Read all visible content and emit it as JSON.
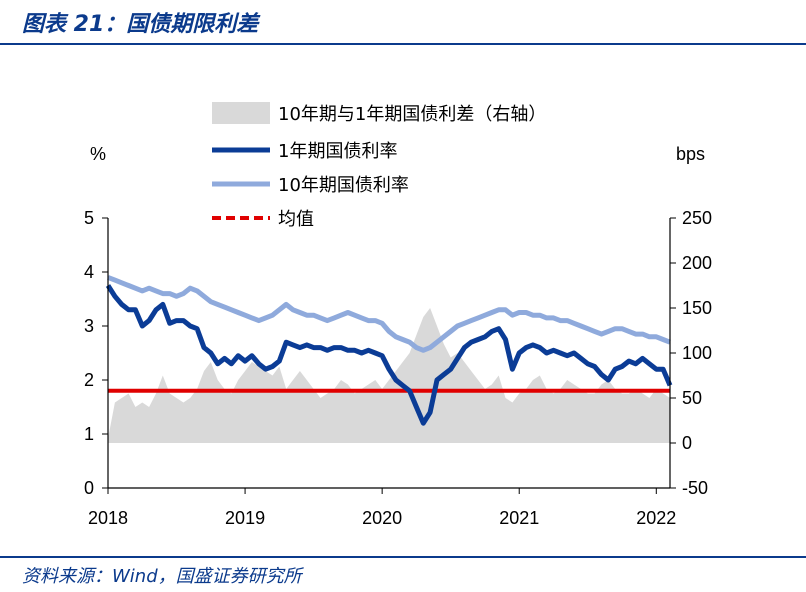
{
  "header": {
    "title": "图表 21：国债期限利差"
  },
  "footer": {
    "source": "资料来源：Wind，国盛证券研究所"
  },
  "colors": {
    "spread": "#d9d9d9",
    "y1": "#0b3c96",
    "y10": "#8faadc",
    "mean": "#e00000",
    "brand": "#0b3a8c"
  },
  "chart_data": {
    "type": "line",
    "left_unit": "%",
    "right_unit": "bps",
    "x_ticks": [
      "2018",
      "2019",
      "2020",
      "2021",
      "2022"
    ],
    "y_left_ticks": [
      "0",
      "1",
      "2",
      "3",
      "4",
      "5"
    ],
    "y_right_ticks": [
      "-50",
      "0",
      "50",
      "100",
      "150",
      "200",
      "250"
    ],
    "ylim_left": [
      0,
      5
    ],
    "ylim_right": [
      -50,
      250
    ],
    "xlim": [
      2018.0,
      2022.1
    ],
    "legend": [
      {
        "label": "10年期与1年期国债利差（右轴）",
        "key": "spread"
      },
      {
        "label": "1年期国债利率",
        "key": "y1"
      },
      {
        "label": "10年期国债利率",
        "key": "y10"
      },
      {
        "label": "均值",
        "key": "mean"
      }
    ],
    "mean_value_left": 1.8,
    "series": [
      {
        "name": "10年期与1年期国债利差（右轴）",
        "axis": "right",
        "type": "area",
        "x": [
          2018.0,
          2018.05,
          2018.1,
          2018.15,
          2018.2,
          2018.25,
          2018.3,
          2018.35,
          2018.4,
          2018.45,
          2018.5,
          2018.55,
          2018.6,
          2018.65,
          2018.7,
          2018.75,
          2018.8,
          2018.85,
          2018.9,
          2018.95,
          2019.0,
          2019.05,
          2019.1,
          2019.15,
          2019.2,
          2019.25,
          2019.3,
          2019.35,
          2019.4,
          2019.45,
          2019.5,
          2019.55,
          2019.6,
          2019.65,
          2019.7,
          2019.75,
          2019.8,
          2019.85,
          2019.9,
          2019.95,
          2020.0,
          2020.05,
          2020.1,
          2020.15,
          2020.2,
          2020.25,
          2020.3,
          2020.35,
          2020.4,
          2020.45,
          2020.5,
          2020.55,
          2020.6,
          2020.65,
          2020.7,
          2020.75,
          2020.8,
          2020.85,
          2020.9,
          2020.95,
          2021.0,
          2021.05,
          2021.1,
          2021.15,
          2021.2,
          2021.25,
          2021.3,
          2021.35,
          2021.4,
          2021.45,
          2021.5,
          2021.55,
          2021.6,
          2021.65,
          2021.7,
          2021.75,
          2021.8,
          2021.85,
          2021.9,
          2021.95,
          2022.0,
          2022.05,
          2022.1
        ],
        "values": [
          5,
          45,
          50,
          55,
          40,
          45,
          40,
          55,
          75,
          55,
          50,
          45,
          50,
          60,
          80,
          90,
          70,
          60,
          55,
          70,
          80,
          90,
          85,
          80,
          75,
          85,
          60,
          70,
          80,
          70,
          60,
          50,
          55,
          60,
          70,
          65,
          55,
          60,
          65,
          70,
          60,
          70,
          80,
          90,
          100,
          120,
          140,
          150,
          130,
          110,
          95,
          100,
          90,
          80,
          70,
          60,
          65,
          75,
          50,
          45,
          55,
          60,
          70,
          75,
          60,
          55,
          60,
          70,
          65,
          60,
          55,
          55,
          65,
          70,
          60,
          55,
          55,
          60,
          55,
          50,
          60,
          55,
          50
        ]
      },
      {
        "name": "1年期国债利率",
        "axis": "left",
        "x": [
          2018.0,
          2018.05,
          2018.1,
          2018.15,
          2018.2,
          2018.25,
          2018.3,
          2018.35,
          2018.4,
          2018.45,
          2018.5,
          2018.55,
          2018.6,
          2018.65,
          2018.7,
          2018.75,
          2018.8,
          2018.85,
          2018.9,
          2018.95,
          2019.0,
          2019.05,
          2019.1,
          2019.15,
          2019.2,
          2019.25,
          2019.3,
          2019.35,
          2019.4,
          2019.45,
          2019.5,
          2019.55,
          2019.6,
          2019.65,
          2019.7,
          2019.75,
          2019.8,
          2019.85,
          2019.9,
          2019.95,
          2020.0,
          2020.05,
          2020.1,
          2020.15,
          2020.2,
          2020.25,
          2020.3,
          2020.35,
          2020.4,
          2020.45,
          2020.5,
          2020.55,
          2020.6,
          2020.65,
          2020.7,
          2020.75,
          2020.8,
          2020.85,
          2020.9,
          2020.95,
          2021.0,
          2021.05,
          2021.1,
          2021.15,
          2021.2,
          2021.25,
          2021.3,
          2021.35,
          2021.4,
          2021.45,
          2021.5,
          2021.55,
          2021.6,
          2021.65,
          2021.7,
          2021.75,
          2021.8,
          2021.85,
          2021.9,
          2021.95,
          2022.0,
          2022.05,
          2022.1
        ],
        "values": [
          3.75,
          3.55,
          3.4,
          3.3,
          3.3,
          3.0,
          3.1,
          3.3,
          3.4,
          3.05,
          3.1,
          3.1,
          3.0,
          2.95,
          2.6,
          2.5,
          2.3,
          2.4,
          2.3,
          2.45,
          2.35,
          2.45,
          2.3,
          2.2,
          2.25,
          2.35,
          2.7,
          2.65,
          2.6,
          2.65,
          2.6,
          2.6,
          2.55,
          2.6,
          2.6,
          2.55,
          2.55,
          2.5,
          2.55,
          2.5,
          2.45,
          2.2,
          2.0,
          1.9,
          1.8,
          1.5,
          1.2,
          1.4,
          2.0,
          2.1,
          2.2,
          2.4,
          2.6,
          2.7,
          2.75,
          2.8,
          2.9,
          2.95,
          2.75,
          2.2,
          2.5,
          2.6,
          2.65,
          2.6,
          2.5,
          2.55,
          2.5,
          2.45,
          2.5,
          2.4,
          2.3,
          2.25,
          2.1,
          2.0,
          2.2,
          2.25,
          2.35,
          2.3,
          2.4,
          2.3,
          2.2,
          2.2,
          1.9
        ]
      },
      {
        "name": "10年期国债利率",
        "axis": "left",
        "x": [
          2018.0,
          2018.05,
          2018.1,
          2018.15,
          2018.2,
          2018.25,
          2018.3,
          2018.35,
          2018.4,
          2018.45,
          2018.5,
          2018.55,
          2018.6,
          2018.65,
          2018.7,
          2018.75,
          2018.8,
          2018.85,
          2018.9,
          2018.95,
          2019.0,
          2019.05,
          2019.1,
          2019.15,
          2019.2,
          2019.25,
          2019.3,
          2019.35,
          2019.4,
          2019.45,
          2019.5,
          2019.55,
          2019.6,
          2019.65,
          2019.7,
          2019.75,
          2019.8,
          2019.85,
          2019.9,
          2019.95,
          2020.0,
          2020.05,
          2020.1,
          2020.15,
          2020.2,
          2020.25,
          2020.3,
          2020.35,
          2020.4,
          2020.45,
          2020.5,
          2020.55,
          2020.6,
          2020.65,
          2020.7,
          2020.75,
          2020.8,
          2020.85,
          2020.9,
          2020.95,
          2021.0,
          2021.05,
          2021.1,
          2021.15,
          2021.2,
          2021.25,
          2021.3,
          2021.35,
          2021.4,
          2021.45,
          2021.5,
          2021.55,
          2021.6,
          2021.65,
          2021.7,
          2021.75,
          2021.8,
          2021.85,
          2021.9,
          2021.95,
          2022.0,
          2022.05,
          2022.1
        ],
        "values": [
          3.9,
          3.85,
          3.8,
          3.75,
          3.7,
          3.65,
          3.7,
          3.65,
          3.6,
          3.6,
          3.55,
          3.6,
          3.7,
          3.65,
          3.55,
          3.45,
          3.4,
          3.35,
          3.3,
          3.25,
          3.2,
          3.15,
          3.1,
          3.15,
          3.2,
          3.3,
          3.4,
          3.3,
          3.25,
          3.2,
          3.2,
          3.15,
          3.1,
          3.15,
          3.2,
          3.25,
          3.2,
          3.15,
          3.1,
          3.1,
          3.05,
          2.9,
          2.8,
          2.75,
          2.7,
          2.6,
          2.55,
          2.6,
          2.7,
          2.8,
          2.9,
          3.0,
          3.05,
          3.1,
          3.15,
          3.2,
          3.25,
          3.3,
          3.3,
          3.2,
          3.25,
          3.25,
          3.2,
          3.2,
          3.15,
          3.15,
          3.1,
          3.1,
          3.05,
          3.0,
          2.95,
          2.9,
          2.85,
          2.9,
          2.95,
          2.95,
          2.9,
          2.85,
          2.85,
          2.8,
          2.8,
          2.75,
          2.7
        ]
      }
    ]
  }
}
